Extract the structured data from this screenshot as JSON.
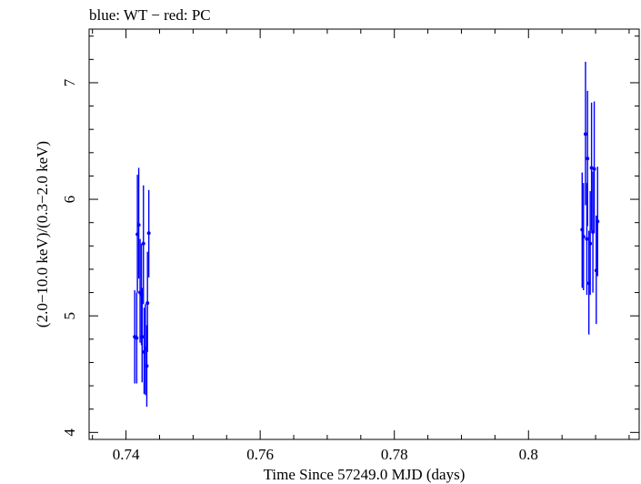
{
  "chart_data": {
    "type": "scatter",
    "title": "blue: WT − red: PC",
    "xlabel": "Time Since 57249.0 MJD (days)",
    "ylabel": "(2.0−10.0 keV)/(0.3−2.0 keV)",
    "xlim": [
      0.7345,
      0.8165
    ],
    "ylim": [
      3.94,
      7.46
    ],
    "xticks": [
      0.74,
      0.76,
      0.78,
      0.8
    ],
    "xtick_labels": [
      "0.74",
      "0.76",
      "0.78",
      "0.8"
    ],
    "yticks": [
      4,
      5,
      6,
      7
    ],
    "ytick_labels": [
      "4",
      "5",
      "6",
      "7"
    ],
    "grid": false,
    "colors": {
      "WT": "#0000ff",
      "PC": "#ff0000",
      "axes": "#000000"
    },
    "series": [
      {
        "name": "WT",
        "color": "#0000ff",
        "points": [
          {
            "x": 0.7413,
            "y": 4.82,
            "ylo": 4.42,
            "yhi": 5.22
          },
          {
            "x": 0.7416,
            "y": 4.81,
            "ylo": 4.42,
            "yhi": 5.2
          },
          {
            "x": 0.7417,
            "y": 5.7,
            "ylo": 5.2,
            "yhi": 6.21
          },
          {
            "x": 0.7419,
            "y": 5.78,
            "ylo": 5.32,
            "yhi": 6.27
          },
          {
            "x": 0.7421,
            "y": 5.2,
            "ylo": 4.77,
            "yhi": 5.66
          },
          {
            "x": 0.7423,
            "y": 5.18,
            "ylo": 4.75,
            "yhi": 5.62
          },
          {
            "x": 0.7424,
            "y": 4.82,
            "ylo": 4.43,
            "yhi": 5.24
          },
          {
            "x": 0.7426,
            "y": 5.62,
            "ylo": 5.1,
            "yhi": 6.12
          },
          {
            "x": 0.7427,
            "y": 4.69,
            "ylo": 4.33,
            "yhi": 5.07
          },
          {
            "x": 0.7429,
            "y": 4.72,
            "ylo": 4.32,
            "yhi": 5.1
          },
          {
            "x": 0.7431,
            "y": 4.57,
            "ylo": 4.22,
            "yhi": 4.92
          },
          {
            "x": 0.7432,
            "y": 5.11,
            "ylo": 4.69,
            "yhi": 5.55
          },
          {
            "x": 0.7434,
            "y": 5.71,
            "ylo": 5.33,
            "yhi": 6.08
          },
          {
            "x": 0.808,
            "y": 5.74,
            "ylo": 5.24,
            "yhi": 6.23
          },
          {
            "x": 0.8082,
            "y": 5.68,
            "ylo": 5.22,
            "yhi": 6.14
          },
          {
            "x": 0.8085,
            "y": 6.56,
            "ylo": 5.95,
            "yhi": 7.18
          },
          {
            "x": 0.8087,
            "y": 5.66,
            "ylo": 5.18,
            "yhi": 6.14
          },
          {
            "x": 0.8088,
            "y": 6.35,
            "ylo": 5.77,
            "yhi": 6.93
          },
          {
            "x": 0.809,
            "y": 5.28,
            "ylo": 4.84,
            "yhi": 5.73
          },
          {
            "x": 0.8092,
            "y": 5.62,
            "ylo": 5.18,
            "yhi": 6.07
          },
          {
            "x": 0.8094,
            "y": 6.27,
            "ylo": 5.73,
            "yhi": 6.83
          },
          {
            "x": 0.8096,
            "y": 5.72,
            "ylo": 5.2,
            "yhi": 6.24
          },
          {
            "x": 0.8098,
            "y": 6.26,
            "ylo": 5.71,
            "yhi": 6.84
          },
          {
            "x": 0.8101,
            "y": 5.39,
            "ylo": 4.93,
            "yhi": 5.86
          },
          {
            "x": 0.8103,
            "y": 5.81,
            "ylo": 5.34,
            "yhi": 6.28
          }
        ]
      }
    ]
  }
}
